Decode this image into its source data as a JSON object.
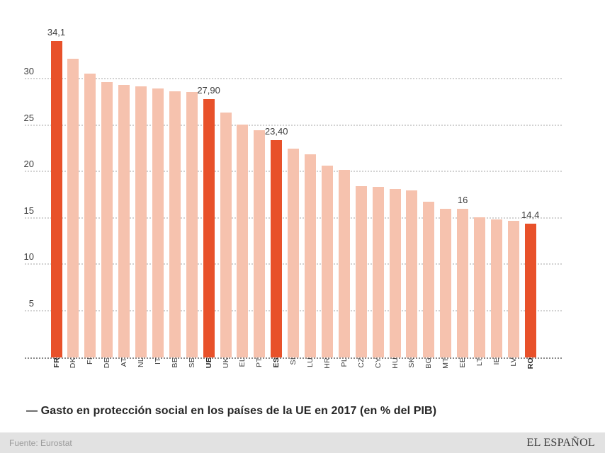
{
  "chart_data": {
    "type": "bar",
    "title": "— Gasto en protección social en los países de la UE en 2017 (en % del PIB)",
    "categories": [
      "FR",
      "DK",
      "FI",
      "DE",
      "AT",
      "NL",
      "IT",
      "BE",
      "SE",
      "UE",
      "UK",
      "EL",
      "PT",
      "ES",
      "SI",
      "LU",
      "HR",
      "PL",
      "CZ",
      "CY",
      "HU",
      "SK",
      "BG",
      "MT",
      "EE",
      "LT",
      "IE",
      "LV",
      "RO"
    ],
    "values": [
      34.1,
      32.2,
      30.6,
      29.7,
      29.4,
      29.2,
      29.0,
      28.7,
      28.6,
      27.9,
      26.4,
      25.1,
      24.5,
      23.4,
      22.5,
      21.9,
      20.7,
      20.2,
      18.5,
      18.4,
      18.2,
      18.0,
      16.8,
      16.0,
      16.0,
      15.1,
      14.9,
      14.7,
      14.4
    ],
    "highlighted": [
      "FR",
      "UE",
      "ES",
      "RO"
    ],
    "value_labels": {
      "FR": "34,1",
      "UE": "27,90",
      "ES": "23,40",
      "EE": "16",
      "RO": "14,4"
    },
    "y_ticks": [
      5,
      10,
      15,
      20,
      25,
      30
    ],
    "ylim": [
      0,
      35
    ],
    "xlabel": "",
    "ylabel": "",
    "grid": "horizontal-dotted",
    "legend": "none",
    "colors": {
      "bar": "#f6c2ae",
      "bar_highlight": "#e8512a",
      "grid": "#d2d2d2",
      "baseline": "#8a8a8a",
      "label_text": "#3d3d3d"
    }
  },
  "footer": {
    "source": "Fuente: Eurostat",
    "brand": "EL ESPAÑOL"
  }
}
